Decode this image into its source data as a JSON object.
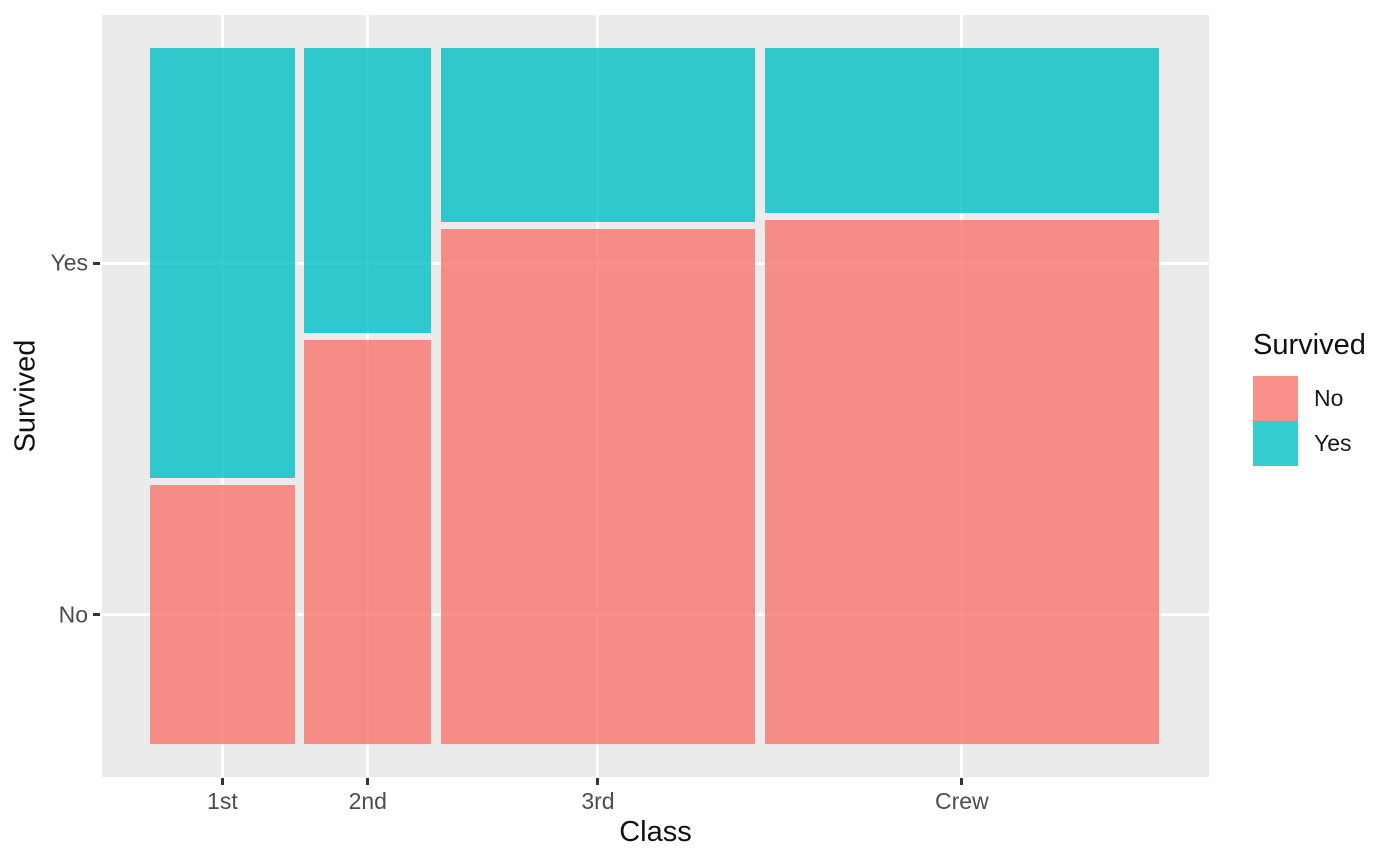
{
  "figure": {
    "background": "#FFFFFF",
    "panel_background": "#EBEBEB",
    "gridline_color": "#FFFFFF",
    "tick_mark_color": "#333333",
    "tick_label_color": "#4D4D4D",
    "axis_title_color": "#111111"
  },
  "chart_data": {
    "type": "mosaic",
    "title": "",
    "xlabel": "Class",
    "ylabel": "Survived",
    "categories": [
      "1st",
      "2nd",
      "3rd",
      "Crew"
    ],
    "x_tick_labels": [
      "1st",
      "2nd",
      "3rd",
      "Crew"
    ],
    "y_tick_labels_bottom_to_top": [
      "No",
      "Yes"
    ],
    "series": [
      {
        "name": "No",
        "color": "#F8766D",
        "counts": [
          122,
          167,
          528,
          673
        ]
      },
      {
        "name": "Yes",
        "color": "#00BFC4",
        "counts": [
          203,
          118,
          178,
          212
        ]
      }
    ],
    "column_totals": [
      325,
      285,
      706,
      885
    ],
    "column_width_shares": [
      0.148,
      0.129,
      0.321,
      0.402
    ],
    "yes_proportion_per_column": [
      0.625,
      0.414,
      0.252,
      0.24
    ],
    "bar_alpha": 0.8,
    "legend": {
      "title": "Survived",
      "position": "right",
      "entries": [
        {
          "label": "No",
          "color": "#F8766D"
        },
        {
          "label": "Yes",
          "color": "#00BFC4"
        }
      ]
    },
    "layout_hints": {
      "grid": "white major gridlines at category centers and at y tick positions",
      "segment_order_top_to_bottom": [
        "Yes",
        "No"
      ]
    }
  }
}
